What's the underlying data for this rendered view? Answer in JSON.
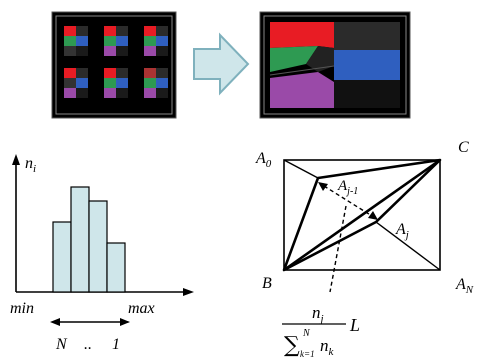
{
  "colors": {
    "red": "#e81c24",
    "green": "#2e9a52",
    "blue": "#2f5fbf",
    "purple": "#9a4aa8",
    "dark": "#2b2b2b",
    "arrow_fill": "#cfe6ea",
    "arrow_stroke": "#7fb1bd",
    "bar_fill": "#cfe6ea"
  },
  "icons": [
    "right-arrow-icon",
    "double-headed-arrow-icon"
  ],
  "histogram": {
    "y_label": "n",
    "y_sub": "i",
    "x_min": "min",
    "x_max": "max",
    "range_n": "N",
    "range_dots": "..",
    "range_one": "1",
    "bar_values": [
      2,
      3,
      2.6,
      1.4
    ]
  },
  "polygon": {
    "a0": "A",
    "a0_sub": "0",
    "c": "C",
    "aj1": "A",
    "aj1_sub": "j-1",
    "aj": "A",
    "aj_sub": "j",
    "b": "B",
    "an": "A",
    "an_sub": "N"
  },
  "formula": {
    "num": "n",
    "num_sub": "j",
    "sum": "∑",
    "sum_upper": "N",
    "sum_lower": "k=1",
    "den_n": "n",
    "den_sub": "k",
    "l": "L"
  }
}
